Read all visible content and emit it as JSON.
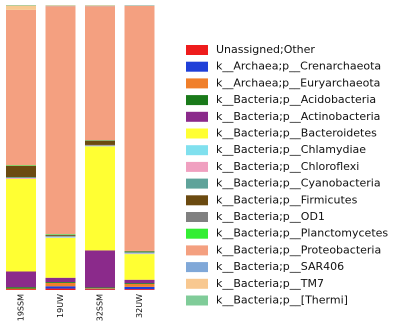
{
  "chart_data": {
    "type": "stacked_bar",
    "categories": [
      "19SSM",
      "19UW",
      "32SSM",
      "32UW"
    ],
    "ylim": [
      0,
      100
    ],
    "series": [
      {
        "name": "Unassigned;Other",
        "color": "#ee1c1c",
        "values": [
          0.3,
          0.5,
          0.3,
          0.3
        ]
      },
      {
        "name": "k__Archaea;p__Crenarchaeota",
        "color": "#1f3fd8",
        "values": [
          0,
          0.8,
          0.1,
          0.8
        ]
      },
      {
        "name": "k__Archaea;p__Euryarchaeota",
        "color": "#f07f2a",
        "values": [
          0.2,
          1.2,
          0.2,
          1
        ]
      },
      {
        "name": "k__Bacteria;p__Acidobacteria",
        "color": "#1a7a1a",
        "values": [
          0.5,
          0.3,
          0.3,
          0.3
        ]
      },
      {
        "name": "k__Bacteria;p__Actinobacteria",
        "color": "#8b2a8b",
        "values": [
          5.5,
          1.5,
          13,
          1.2
        ]
      },
      {
        "name": "k__Bacteria;p__Bacteroidetes",
        "color": "#ffff33",
        "values": [
          32.5,
          14,
          36.5,
          9
        ]
      },
      {
        "name": "k__Bacteria;p__Chlamydiae",
        "color": "#80e0ee",
        "values": [
          0,
          0.2,
          0.1,
          0.2
        ]
      },
      {
        "name": "k__Bacteria;p__Chloroflexi",
        "color": "#f0a0c0",
        "values": [
          0.3,
          0.2,
          0.2,
          0.2
        ]
      },
      {
        "name": "k__Bacteria;p__Cyanobacteria",
        "color": "#5fa39a",
        "values": [
          0.3,
          0.3,
          0.2,
          0.3
        ]
      },
      {
        "name": "k__Bacteria;p__Firmicutes",
        "color": "#6b4a10",
        "values": [
          4,
          0.3,
          1.5,
          0.2
        ]
      },
      {
        "name": "k__Bacteria;p__OD1",
        "color": "#808080",
        "values": [
          0,
          0.1,
          0.1,
          0.1
        ]
      },
      {
        "name": "k__Bacteria;p__Planctomycetes",
        "color": "#33ee33",
        "values": [
          0.2,
          0.2,
          0.1,
          0.1
        ]
      },
      {
        "name": "k__Bacteria;p__Proteobacteria",
        "color": "#f4a080",
        "values": [
          54.5,
          80,
          47,
          86
        ]
      },
      {
        "name": "k__Bacteria;p__SAR406",
        "color": "#80a8d8",
        "values": [
          0,
          0.1,
          0.1,
          0.1
        ]
      },
      {
        "name": "k__Bacteria;p__TM7",
        "color": "#f8c890",
        "values": [
          1.5,
          0.2,
          0.2,
          0.1
        ]
      },
      {
        "name": "k__Bacteria;p__[Thermi]",
        "color": "#80cc99",
        "values": [
          0.2,
          0.1,
          0.1,
          0.1
        ]
      }
    ]
  }
}
